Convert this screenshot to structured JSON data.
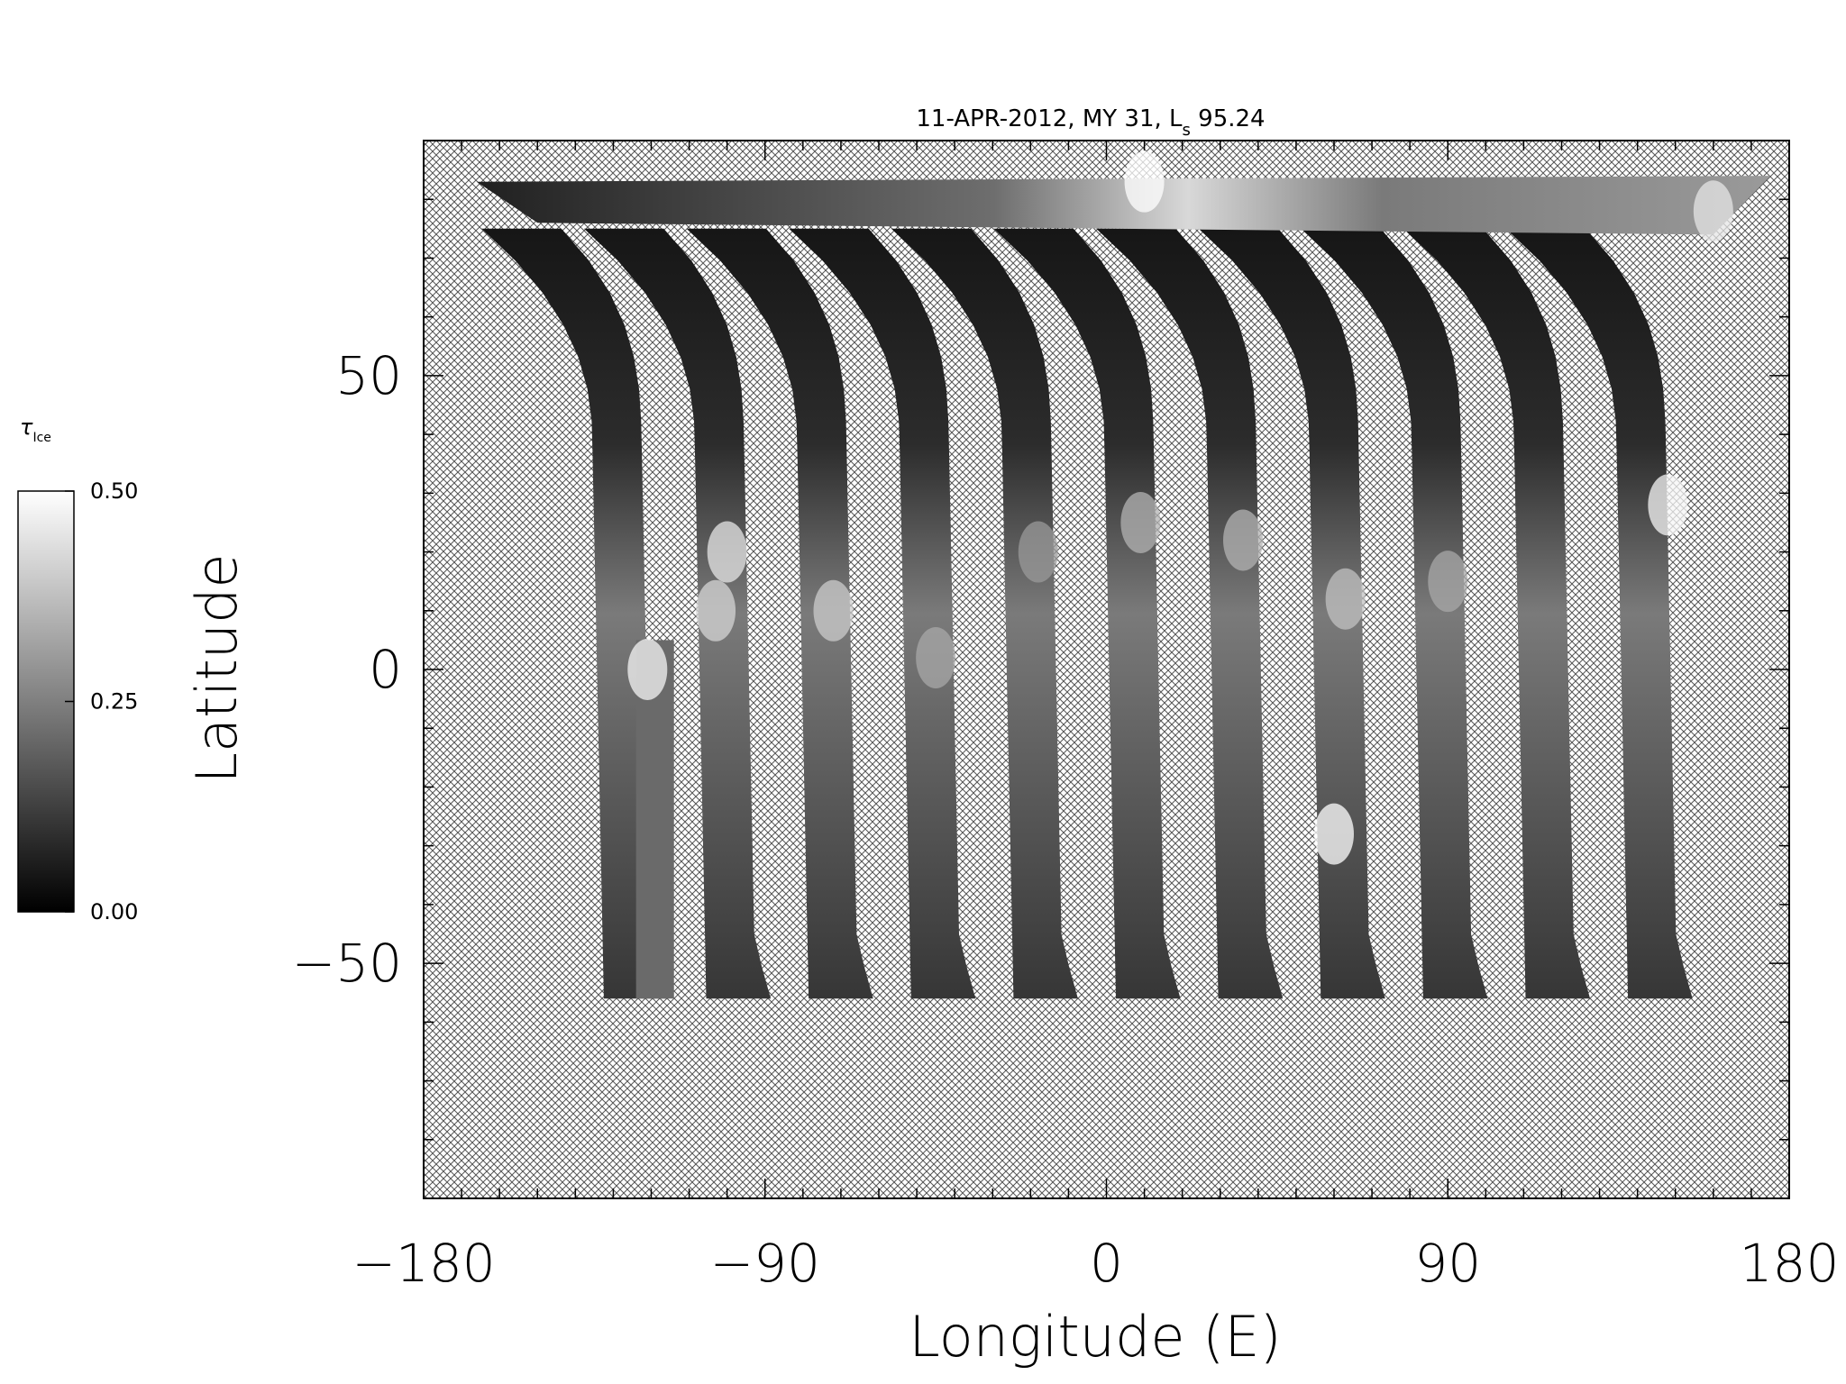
{
  "chart_data": {
    "type": "heatmap",
    "title": {
      "prefix": "11-APR-2012, MY 31,  L",
      "subscript": "s",
      "suffix": " 95.24"
    },
    "xlabel": "Longitude (E)",
    "ylabel": "Latitude",
    "xlim": [
      -180,
      180
    ],
    "ylim": [
      -90,
      90
    ],
    "xticks": [
      -180,
      -90,
      0,
      90,
      180
    ],
    "xtick_labels": [
      "−180",
      "−90",
      "0",
      "90",
      "180"
    ],
    "yticks": [
      -50,
      0,
      50
    ],
    "ytick_labels": [
      "−50",
      "0",
      "50"
    ],
    "x_minor_step": 10,
    "y_minor_step": 10,
    "no_data_pattern": "crosshatch",
    "colorbar": {
      "symbol": "τ",
      "subscript": "Ice",
      "range": [
        0,
        0.5
      ],
      "ticks": [
        0,
        0.25,
        0.5
      ],
      "tick_labels": [
        "0.00",
        "0.25",
        "0.50"
      ],
      "colors": [
        "#000000",
        "#ffffff"
      ]
    },
    "swaths": [
      {
        "lon_center": -126
      },
      {
        "lon_center": -99
      },
      {
        "lon_center": -72
      },
      {
        "lon_center": -45
      },
      {
        "lon_center": -18
      },
      {
        "lon_center": 9
      },
      {
        "lon_center": 36
      },
      {
        "lon_center": 63
      },
      {
        "lon_center": 90
      },
      {
        "lon_center": 117
      },
      {
        "lon_center": 144
      }
    ],
    "swath_lat_range": [
      -56,
      75
    ],
    "partial_swath": {
      "lon_range": [
        -124,
        -114
      ],
      "lat_range": [
        -56,
        5
      ]
    },
    "polar_band_lat_range": [
      80,
      84
    ],
    "bright_spots": [
      {
        "lon": -100,
        "lat": 20,
        "value": 0.45
      },
      {
        "lon": -103,
        "lat": 10,
        "value": 0.42
      },
      {
        "lon": -72,
        "lat": 10,
        "value": 0.4
      },
      {
        "lon": -45,
        "lat": 2,
        "value": 0.33
      },
      {
        "lon": -18,
        "lat": 20,
        "value": 0.3
      },
      {
        "lon": 9,
        "lat": 25,
        "value": 0.35
      },
      {
        "lon": 36,
        "lat": 22,
        "value": 0.35
      },
      {
        "lon": 63,
        "lat": 12,
        "value": 0.38
      },
      {
        "lon": 90,
        "lat": 15,
        "value": 0.33
      },
      {
        "lon": 148,
        "lat": 28,
        "value": 0.48
      },
      {
        "lon": 60,
        "lat": -28,
        "value": 0.5
      },
      {
        "lon": -121,
        "lat": 0,
        "value": 0.48
      },
      {
        "lon": 10,
        "lat": 83,
        "value": 0.5
      },
      {
        "lon": 160,
        "lat": 78,
        "value": 0.45
      }
    ]
  }
}
